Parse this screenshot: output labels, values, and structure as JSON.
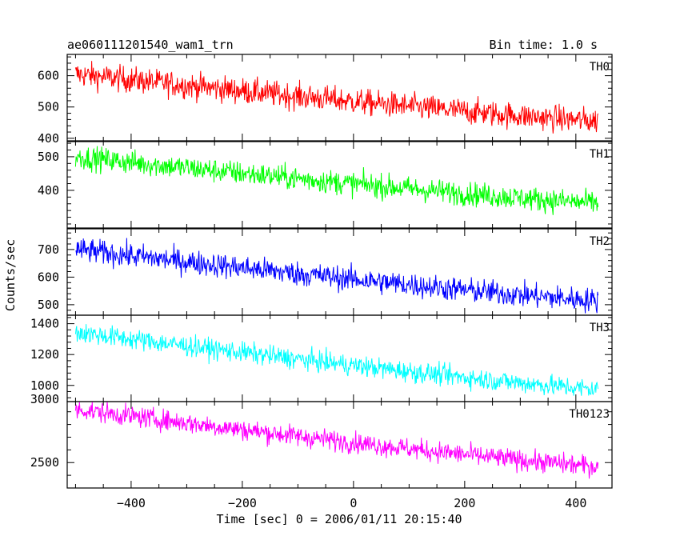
{
  "chart_data": {
    "type": "line",
    "title": "ae060111201540_wam1_trn",
    "bin_time": "Bin time: 1.0 s",
    "xlabel": "Time [sec] 0 = 2006/01/11 20:15:40",
    "ylabel": "Counts/sec",
    "xlim": [
      -515,
      465
    ],
    "x_ticks": [
      -400,
      -200,
      0,
      200,
      400
    ],
    "x_tick_labels": [
      "−400",
      "−200",
      "0",
      "200",
      "400"
    ],
    "x_range": [
      -500,
      440
    ],
    "grid": false,
    "panels": [
      {
        "name": "TH0",
        "color": "#ff0000",
        "ylim": [
          392,
          668
        ],
        "yticks": [
          400,
          500,
          600
        ],
        "y_tick_labels": [
          "400",
          "500",
          "600"
        ],
        "trend_start": 605,
        "trend_end": 455,
        "noise": 28
      },
      {
        "name": "TH1",
        "color": "#00ff00",
        "ylim": [
          288,
          545
        ],
        "yticks": [
          400,
          500
        ],
        "y_tick_labels": [
          "400",
          "500"
        ],
        "trend_start": 500,
        "trend_end": 362,
        "noise": 24
      },
      {
        "name": "TH2",
        "color": "#0000ff",
        "ylim": [
          462,
          775
        ],
        "yticks": [
          500,
          600,
          700
        ],
        "y_tick_labels": [
          "500",
          "600",
          "700"
        ],
        "trend_start": 700,
        "trend_end": 515,
        "noise": 30
      },
      {
        "name": "TH3",
        "color": "#00ffff",
        "ylim": [
          895,
          1455
        ],
        "yticks": [
          1000,
          1200,
          1400
        ],
        "y_tick_labels": [
          "1000",
          "1200",
          "1400"
        ],
        "trend_start": 1345,
        "trend_end": 975,
        "noise": 45
      },
      {
        "name": "TH0123",
        "color": "#ff00ff",
        "ylim": [
          2300,
          2980
        ],
        "yticks": [
          2500,
          3000
        ],
        "y_tick_labels": [
          "2500",
          "3000"
        ],
        "trend_start": 2920,
        "trend_end": 2470,
        "noise": 55
      }
    ]
  }
}
